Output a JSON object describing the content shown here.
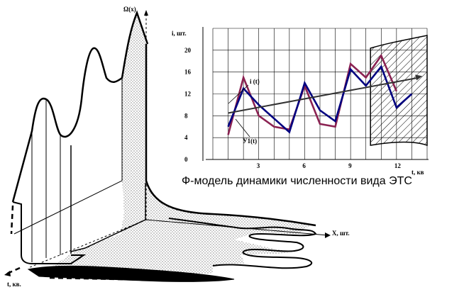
{
  "omega_axis_label": "Ω(x)",
  "x_axis_label": "X, шт.",
  "t_axis_label": "t, кв.",
  "chart_data": {
    "type": "line",
    "ylabel": "i, шт.",
    "xlabel": "t, кв",
    "x_ticks": [
      "3",
      "6",
      "9",
      "12"
    ],
    "y_ticks": [
      "0",
      "4",
      "8",
      "12",
      "16",
      "20"
    ],
    "xlim": [
      0,
      14
    ],
    "ylim": [
      0,
      24
    ],
    "grid": true,
    "series": [
      {
        "name": "i (t)",
        "color": "#8b2252",
        "x": [
          1,
          2,
          3,
          4,
          5,
          6,
          7,
          8,
          9,
          10,
          11,
          12
        ],
        "y": [
          4.5,
          15,
          8,
          6,
          5.5,
          13.5,
          6.5,
          6,
          17.5,
          15,
          19,
          12.5
        ]
      },
      {
        "name": "У1(t)",
        "color": "#000080",
        "x": [
          1,
          2,
          3,
          4,
          5,
          6,
          7,
          8,
          9,
          10,
          11,
          12,
          13
        ],
        "y": [
          6,
          13,
          10,
          7.5,
          5,
          14,
          9,
          7,
          16.5,
          13.5,
          17,
          9.5,
          12
        ]
      },
      {
        "name": "",
        "color": "#333333",
        "x": [
          1,
          13.5
        ],
        "y": [
          8.5,
          15
        ]
      }
    ],
    "hatched_region": {
      "x_from": 10.3,
      "x_to": 14
    },
    "caption": "Ф-модель  динамики численности вида ЭТС"
  }
}
